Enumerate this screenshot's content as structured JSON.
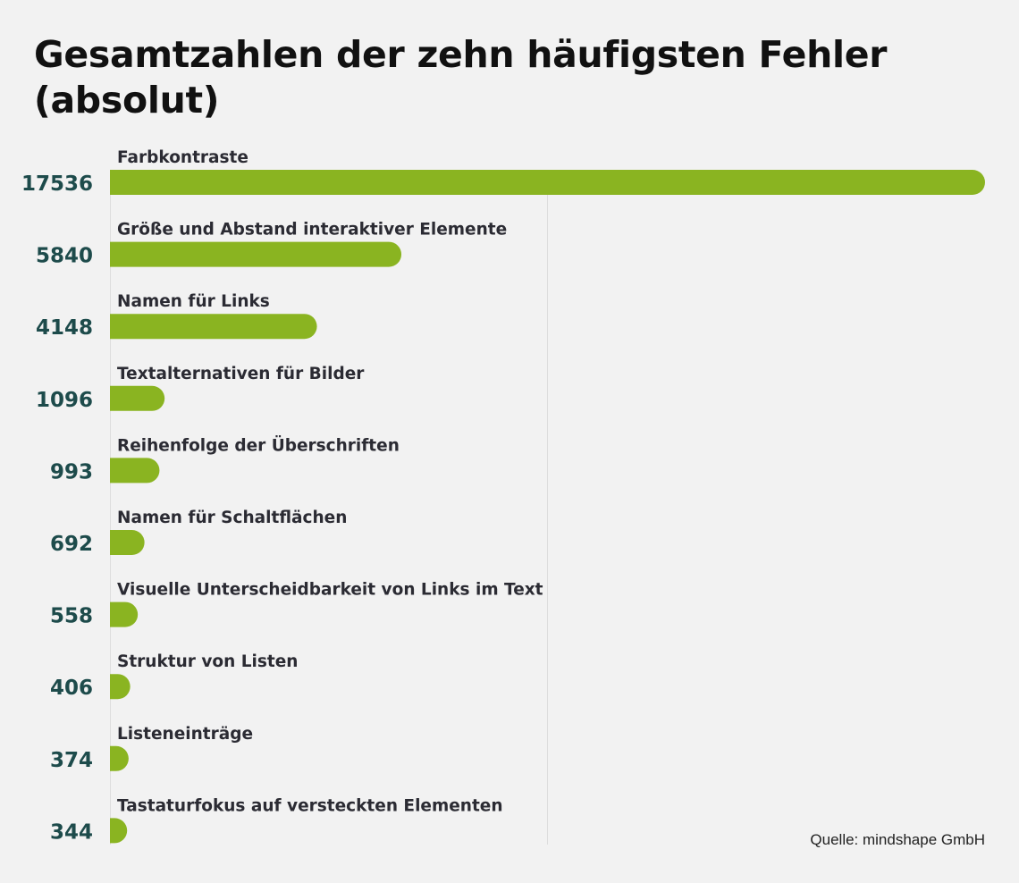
{
  "title": "Gesamtzahlen der zehn häufigsten Fehler (absolut)",
  "source": "Quelle: mindshape GmbH",
  "colors": {
    "bar": "#8ab421",
    "value": "#1d4b4b",
    "label": "#2b2b33",
    "grid": "#dddddd",
    "background": "#f2f2f2"
  },
  "chart_data": {
    "type": "bar",
    "orientation": "horizontal",
    "title": "Gesamtzahlen der zehn häufigsten Fehler (absolut)",
    "categories": [
      "Farbkontraste",
      "Größe und Abstand interaktiver Elemente",
      "Namen für Links",
      "Textalternativen für Bilder",
      "Reihenfolge der Überschriften",
      "Namen für Schaltflächen",
      "Visuelle Unterscheidbarkeit von Links im Text",
      "Struktur von Listen",
      "Listeneinträge",
      "Tastaturfokus auf versteckten Elementen"
    ],
    "values": [
      17536,
      5840,
      4148,
      1096,
      993,
      692,
      558,
      406,
      374,
      344
    ],
    "value_labels": [
      "17536",
      "5840",
      "4148",
      "1096",
      "993",
      "692",
      "558",
      "406",
      "374",
      "344"
    ],
    "xlim": [
      0,
      17536
    ],
    "grid": true,
    "legend": "none"
  }
}
